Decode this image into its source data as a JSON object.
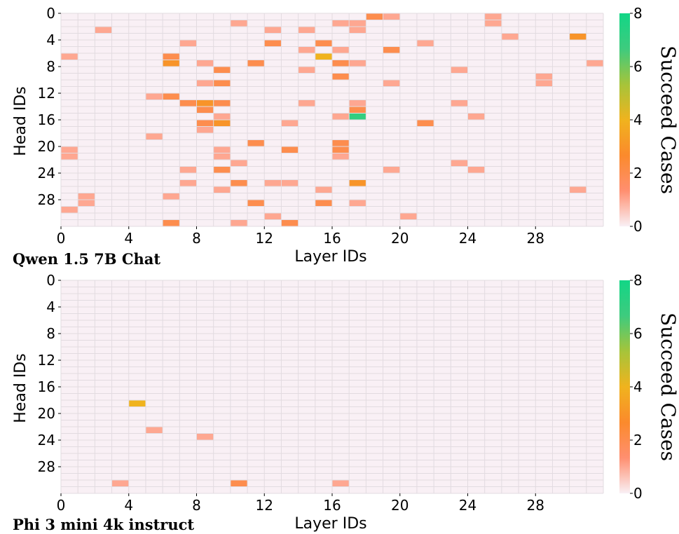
{
  "colorbar": {
    "ticks": [
      0,
      2,
      4,
      6,
      8
    ],
    "min": 0,
    "max": 8,
    "title": "Succeed Cases",
    "colors": [
      "#f9f0f5",
      "#ff8f70",
      "#fb8a2c",
      "#f0b31e",
      "#a6c43a",
      "#3ecb7e",
      "#12d686"
    ]
  },
  "chart_data": [
    {
      "type": "heatmap",
      "model_label": "Qwen 1.5 7B Chat",
      "xlabel": "Layer IDs",
      "ylabel": "Head IDs",
      "x_ticks": [
        0,
        4,
        8,
        12,
        16,
        20,
        24,
        28
      ],
      "y_ticks": [
        0,
        4,
        8,
        12,
        16,
        20,
        24,
        28
      ],
      "n_layers": 32,
      "n_heads": 32,
      "cells": [
        {
          "layer": 18,
          "head": 0,
          "value": 2
        },
        {
          "layer": 19,
          "head": 0,
          "value": 1
        },
        {
          "layer": 25,
          "head": 0,
          "value": 1
        },
        {
          "layer": 10,
          "head": 1,
          "value": 1
        },
        {
          "layer": 16,
          "head": 1,
          "value": 1
        },
        {
          "layer": 17,
          "head": 1,
          "value": 1
        },
        {
          "layer": 25,
          "head": 1,
          "value": 1
        },
        {
          "layer": 2,
          "head": 2,
          "value": 1
        },
        {
          "layer": 12,
          "head": 2,
          "value": 1
        },
        {
          "layer": 14,
          "head": 2,
          "value": 1
        },
        {
          "layer": 17,
          "head": 2,
          "value": 1
        },
        {
          "layer": 26,
          "head": 3,
          "value": 1
        },
        {
          "layer": 30,
          "head": 3,
          "value": 3
        },
        {
          "layer": 7,
          "head": 4,
          "value": 1
        },
        {
          "layer": 12,
          "head": 4,
          "value": 2
        },
        {
          "layer": 15,
          "head": 4,
          "value": 2
        },
        {
          "layer": 21,
          "head": 4,
          "value": 1
        },
        {
          "layer": 14,
          "head": 5,
          "value": 1
        },
        {
          "layer": 16,
          "head": 5,
          "value": 1
        },
        {
          "layer": 19,
          "head": 5,
          "value": 2
        },
        {
          "layer": 0,
          "head": 6,
          "value": 1
        },
        {
          "layer": 6,
          "head": 6,
          "value": 2
        },
        {
          "layer": 15,
          "head": 6,
          "value": 4
        },
        {
          "layer": 6,
          "head": 7,
          "value": 3
        },
        {
          "layer": 8,
          "head": 7,
          "value": 1
        },
        {
          "layer": 11,
          "head": 7,
          "value": 2
        },
        {
          "layer": 16,
          "head": 7,
          "value": 2
        },
        {
          "layer": 17,
          "head": 7,
          "value": 1
        },
        {
          "layer": 31,
          "head": 7,
          "value": 1
        },
        {
          "layer": 9,
          "head": 8,
          "value": 2
        },
        {
          "layer": 14,
          "head": 8,
          "value": 1
        },
        {
          "layer": 23,
          "head": 8,
          "value": 1
        },
        {
          "layer": 16,
          "head": 9,
          "value": 2
        },
        {
          "layer": 28,
          "head": 9,
          "value": 1
        },
        {
          "layer": 8,
          "head": 10,
          "value": 1
        },
        {
          "layer": 9,
          "head": 10,
          "value": 2
        },
        {
          "layer": 19,
          "head": 10,
          "value": 1
        },
        {
          "layer": 28,
          "head": 10,
          "value": 1
        },
        {
          "layer": 5,
          "head": 12,
          "value": 1
        },
        {
          "layer": 6,
          "head": 12,
          "value": 2
        },
        {
          "layer": 7,
          "head": 13,
          "value": 2
        },
        {
          "layer": 8,
          "head": 13,
          "value": 3
        },
        {
          "layer": 9,
          "head": 13,
          "value": 2
        },
        {
          "layer": 14,
          "head": 13,
          "value": 1
        },
        {
          "layer": 17,
          "head": 13,
          "value": 1
        },
        {
          "layer": 23,
          "head": 13,
          "value": 1
        },
        {
          "layer": 8,
          "head": 14,
          "value": 2
        },
        {
          "layer": 17,
          "head": 14,
          "value": 2
        },
        {
          "layer": 9,
          "head": 15,
          "value": 1
        },
        {
          "layer": 16,
          "head": 15,
          "value": 1
        },
        {
          "layer": 17,
          "head": 15,
          "value": 7
        },
        {
          "layer": 24,
          "head": 15,
          "value": 1
        },
        {
          "layer": 8,
          "head": 16,
          "value": 2
        },
        {
          "layer": 9,
          "head": 16,
          "value": 3
        },
        {
          "layer": 13,
          "head": 16,
          "value": 1
        },
        {
          "layer": 21,
          "head": 16,
          "value": 2
        },
        {
          "layer": 8,
          "head": 17,
          "value": 1
        },
        {
          "layer": 5,
          "head": 18,
          "value": 1
        },
        {
          "layer": 11,
          "head": 19,
          "value": 2
        },
        {
          "layer": 16,
          "head": 19,
          "value": 2
        },
        {
          "layer": 0,
          "head": 20,
          "value": 1
        },
        {
          "layer": 9,
          "head": 20,
          "value": 1
        },
        {
          "layer": 13,
          "head": 20,
          "value": 2
        },
        {
          "layer": 16,
          "head": 20,
          "value": 2
        },
        {
          "layer": 0,
          "head": 21,
          "value": 1
        },
        {
          "layer": 9,
          "head": 21,
          "value": 1
        },
        {
          "layer": 16,
          "head": 21,
          "value": 1
        },
        {
          "layer": 10,
          "head": 22,
          "value": 1
        },
        {
          "layer": 23,
          "head": 22,
          "value": 1
        },
        {
          "layer": 7,
          "head": 23,
          "value": 1
        },
        {
          "layer": 9,
          "head": 23,
          "value": 2
        },
        {
          "layer": 19,
          "head": 23,
          "value": 1
        },
        {
          "layer": 24,
          "head": 23,
          "value": 1
        },
        {
          "layer": 7,
          "head": 25,
          "value": 1
        },
        {
          "layer": 10,
          "head": 25,
          "value": 2
        },
        {
          "layer": 12,
          "head": 25,
          "value": 1
        },
        {
          "layer": 13,
          "head": 25,
          "value": 1
        },
        {
          "layer": 17,
          "head": 25,
          "value": 3
        },
        {
          "layer": 9,
          "head": 26,
          "value": 1
        },
        {
          "layer": 15,
          "head": 26,
          "value": 1
        },
        {
          "layer": 30,
          "head": 26,
          "value": 1
        },
        {
          "layer": 1,
          "head": 27,
          "value": 1
        },
        {
          "layer": 6,
          "head": 27,
          "value": 1
        },
        {
          "layer": 1,
          "head": 28,
          "value": 1
        },
        {
          "layer": 11,
          "head": 28,
          "value": 2
        },
        {
          "layer": 15,
          "head": 28,
          "value": 2
        },
        {
          "layer": 17,
          "head": 28,
          "value": 1
        },
        {
          "layer": 0,
          "head": 29,
          "value": 1
        },
        {
          "layer": 12,
          "head": 30,
          "value": 1
        },
        {
          "layer": 20,
          "head": 30,
          "value": 1
        },
        {
          "layer": 6,
          "head": 31,
          "value": 2
        },
        {
          "layer": 10,
          "head": 31,
          "value": 1
        },
        {
          "layer": 13,
          "head": 31,
          "value": 2
        }
      ]
    },
    {
      "type": "heatmap",
      "model_label": "Phi 3 mini 4k instruct",
      "xlabel": "Layer IDs",
      "ylabel": "Head IDs",
      "x_ticks": [
        0,
        4,
        8,
        12,
        16,
        20,
        24,
        28
      ],
      "y_ticks": [
        0,
        4,
        8,
        12,
        16,
        20,
        24,
        28
      ],
      "n_layers": 32,
      "n_heads": 32,
      "cells": [
        {
          "layer": 4,
          "head": 18,
          "value": 4
        },
        {
          "layer": 5,
          "head": 22,
          "value": 1
        },
        {
          "layer": 8,
          "head": 23,
          "value": 1
        },
        {
          "layer": 3,
          "head": 30,
          "value": 1
        },
        {
          "layer": 10,
          "head": 30,
          "value": 2
        },
        {
          "layer": 16,
          "head": 30,
          "value": 1
        }
      ]
    }
  ]
}
